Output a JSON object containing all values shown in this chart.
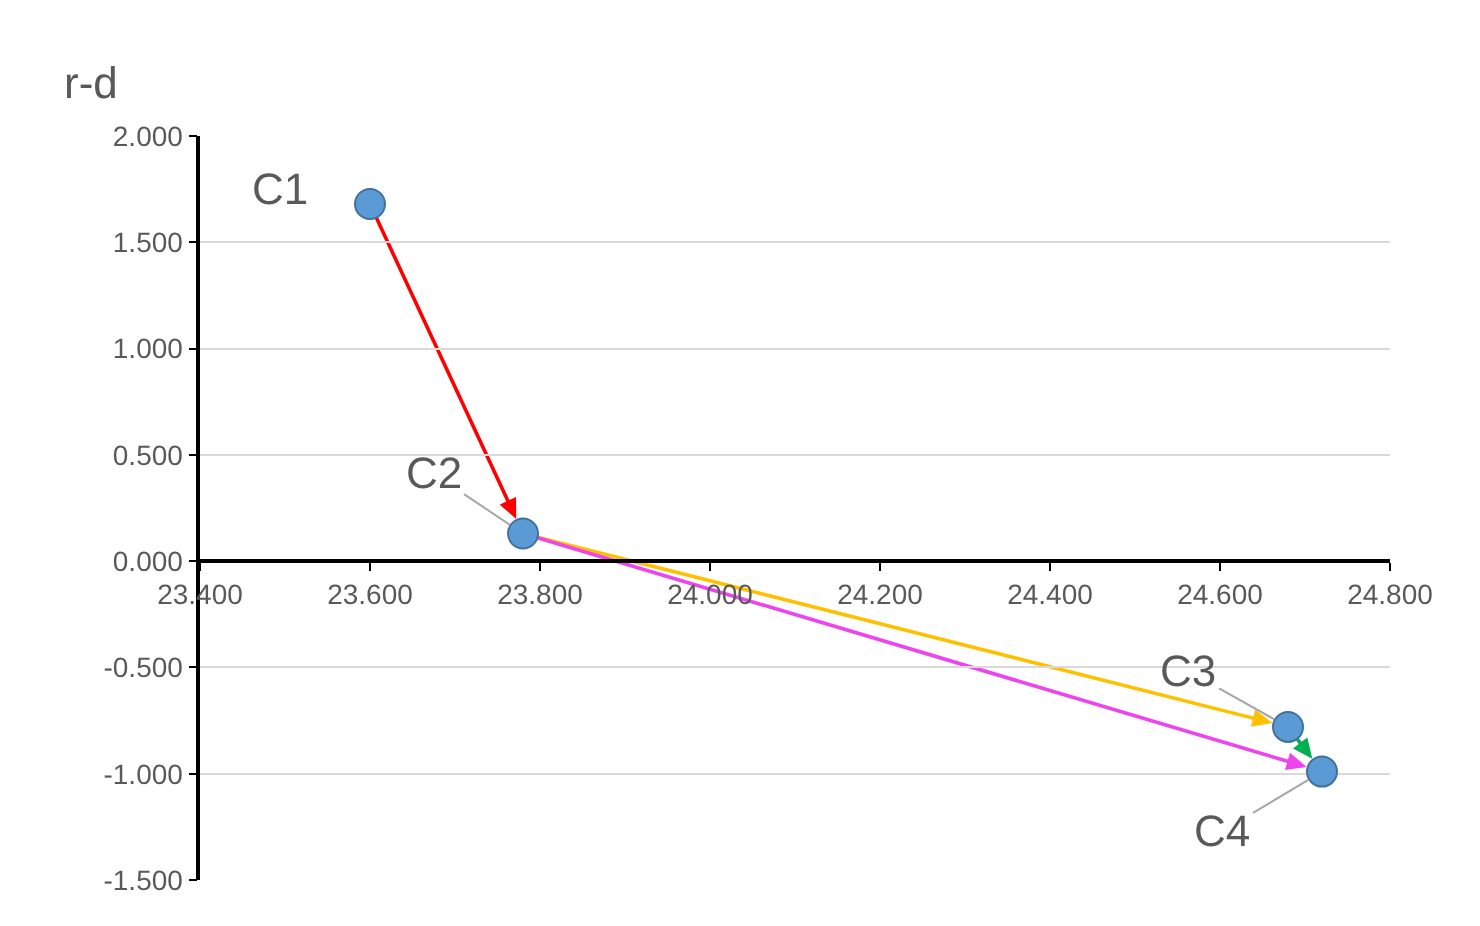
{
  "chart_data": {
    "type": "scatter",
    "ylabel": "r-d",
    "xlim": [
      23.4,
      24.8
    ],
    "xticks": [
      {
        "value": 23.4,
        "label": "23.400"
      },
      {
        "value": 23.6,
        "label": "23.600"
      },
      {
        "value": 23.8,
        "label": "23.800"
      },
      {
        "value": 24.0,
        "label": "24.000"
      },
      {
        "value": 24.2,
        "label": "24.200"
      },
      {
        "value": 24.4,
        "label": "24.400"
      },
      {
        "value": 24.6,
        "label": "24.600"
      },
      {
        "value": 24.8,
        "label": "24.800"
      }
    ],
    "ylim": [
      -1.5,
      2.0
    ],
    "yticks": [
      {
        "value": -1.5,
        "label": "-1.500"
      },
      {
        "value": -1.0,
        "label": "-1.000"
      },
      {
        "value": -0.5,
        "label": "-0.500"
      },
      {
        "value": 0,
        "label": "0.000"
      },
      {
        "value": 0.5,
        "label": "0.500"
      },
      {
        "value": 1.0,
        "label": "1.000"
      },
      {
        "value": 1.5,
        "label": "1.500"
      },
      {
        "value": 2.0,
        "label": "2.000"
      }
    ],
    "grid": "y",
    "legend": false,
    "marker": "circle",
    "series": [
      {
        "color": "#5b9bd5",
        "x": [
          23.6,
          23.78,
          24.68,
          24.72
        ],
        "values": [
          1.68,
          0.13,
          -0.78,
          -0.99
        ]
      }
    ],
    "annotations": [
      {
        "text": "C1",
        "x": 23.6,
        "y": 1.68
      },
      {
        "text": "C2",
        "x": 23.78,
        "y": 0.13
      },
      {
        "text": "C3",
        "x": 24.68,
        "y": -0.78
      },
      {
        "text": "C4",
        "x": 24.72,
        "y": -0.99
      }
    ]
  }
}
